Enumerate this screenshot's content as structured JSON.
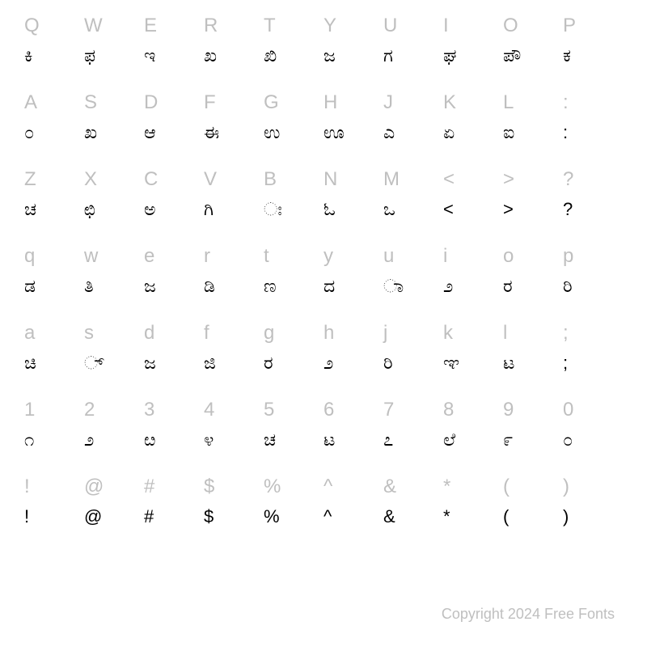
{
  "rows": [
    {
      "keys": [
        "Q",
        "W",
        "E",
        "R",
        "T",
        "Y",
        "U",
        "I",
        "O",
        "P"
      ],
      "glyphs": [
        "ಕಿ",
        "ಫ",
        "ಇ",
        "ಖ",
        "ಖಿ",
        "ಜ",
        "ಗ",
        "ಘ",
        "ಪೌ",
        "ಕ"
      ]
    },
    {
      "keys": [
        "A",
        "S",
        "D",
        "F",
        "G",
        "H",
        "J",
        "K",
        "L",
        ":"
      ],
      "glyphs": [
        "೦",
        "ಖ",
        "ಆ",
        "ಈ",
        "ಉ",
        "ಊ",
        "ಎ",
        "ಏ",
        "ಐ",
        ":"
      ]
    },
    {
      "keys": [
        "Z",
        "X",
        "C",
        "V",
        "B",
        "N",
        "M",
        "<",
        ">",
        "?"
      ],
      "glyphs": [
        "ಚ",
        "ಛಿ",
        "ಅ",
        "ಗಿ",
        "ಃ",
        "ಓ",
        "ಒ",
        "<",
        ">",
        "?"
      ]
    },
    {
      "keys": [
        "q",
        "w",
        "e",
        "r",
        "t",
        "y",
        "u",
        "i",
        "o",
        "p"
      ],
      "glyphs": [
        "ಡ",
        "ತಿ",
        "ಜ",
        "ಡಿ",
        "ಣ",
        "ದ",
        "ಾ",
        "೨",
        "ರ",
        "ರಿ"
      ]
    },
    {
      "keys": [
        "a",
        "s",
        "d",
        "f",
        "g",
        "h",
        "j",
        "k",
        "l",
        ";"
      ],
      "glyphs": [
        "ಚಿ",
        "್",
        "ಜ",
        "ಜಿ",
        "ರ",
        "೨",
        "ರಿ",
        "ಞ",
        "ಟ",
        ";"
      ]
    },
    {
      "keys": [
        "1",
        "2",
        "3",
        "4",
        "5",
        "6",
        "7",
        "8",
        "9",
        "0"
      ],
      "glyphs": [
        "೧",
        "೨",
        "ೞ",
        "೪",
        "ಚ",
        "ಟ",
        "೭",
        "ಲೆ",
        "೯",
        "೦"
      ]
    },
    {
      "keys": [
        "!",
        "@",
        "#",
        "$",
        "%",
        "^",
        "&",
        "*",
        "(",
        ")"
      ],
      "glyphs": [
        "!",
        "@",
        "#",
        "$",
        "%",
        "^",
        "&",
        "*",
        "(",
        ")"
      ]
    }
  ],
  "copyright": "Copyright 2024 Free Fonts",
  "colors": {
    "key": "#bfbfbf",
    "glyph": "#000000",
    "background": "#ffffff"
  },
  "font": {
    "key_size": 24,
    "glyph_size": 22
  }
}
